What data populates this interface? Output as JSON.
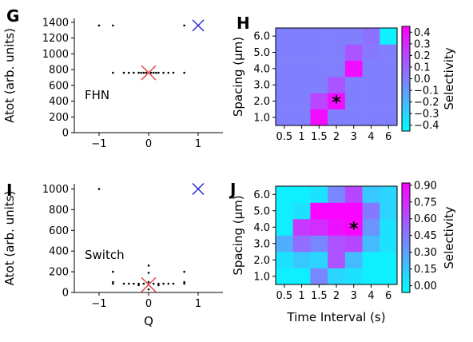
{
  "chart_data": [
    {
      "panel": "G",
      "type": "scatter",
      "xlabel": "",
      "ylabel": "Atot (arb. units)",
      "xlim": [
        -1.5,
        1.5
      ],
      "ylim": [
        0,
        1450
      ],
      "xticks": [
        -1,
        0,
        1
      ],
      "xtick_labels": [
        "−1",
        "0",
        "1"
      ],
      "yticks": [
        0,
        200,
        400,
        600,
        800,
        1000,
        1200,
        1400
      ],
      "annotation": "FHN",
      "series": [
        {
          "marker": "dot",
          "color": "#000000",
          "points": [
            [
              -1.0,
              1360
            ],
            [
              -0.72,
              1360
            ],
            [
              0.72,
              1360
            ],
            [
              -0.72,
              760
            ],
            [
              -0.5,
              760
            ],
            [
              -0.4,
              760
            ],
            [
              -0.3,
              760
            ],
            [
              -0.2,
              760
            ],
            [
              -0.15,
              760
            ],
            [
              -0.1,
              760
            ],
            [
              -0.05,
              760
            ],
            [
              0.0,
              760
            ],
            [
              0.05,
              760
            ],
            [
              0.1,
              760
            ],
            [
              0.15,
              760
            ],
            [
              0.2,
              760
            ],
            [
              0.3,
              760
            ],
            [
              0.4,
              760
            ],
            [
              0.5,
              760
            ],
            [
              0.72,
              760
            ]
          ]
        },
        {
          "marker": "x",
          "color": "#e05050",
          "points": [
            [
              0.0,
              760
            ]
          ]
        },
        {
          "marker": "x",
          "color": "#2b2bd6",
          "points": [
            [
              1.0,
              1360
            ]
          ]
        }
      ]
    },
    {
      "panel": "H",
      "type": "heatmap",
      "xlabel": "",
      "ylabel": "Spacing (μm)",
      "xcategories": [
        "0.5",
        "1",
        "1.5",
        "2",
        "3",
        "4",
        "6"
      ],
      "ycategories": [
        "1.0",
        "2.0",
        "3.0",
        "4.0",
        "5.0",
        "6.0"
      ],
      "values": [
        [
          0.0,
          0.0,
          0.4,
          0.0,
          0.0,
          0.0,
          0.0
        ],
        [
          0.0,
          0.0,
          0.2,
          0.4,
          0.0,
          0.0,
          0.0
        ],
        [
          0.0,
          0.0,
          0.0,
          0.15,
          0.0,
          0.0,
          0.0
        ],
        [
          0.0,
          0.0,
          0.0,
          0.0,
          0.4,
          0.0,
          0.0
        ],
        [
          0.0,
          0.0,
          0.0,
          0.0,
          0.15,
          0.02,
          0.0
        ],
        [
          0.0,
          0.0,
          0.0,
          0.0,
          0.0,
          0.05,
          -0.4
        ]
      ],
      "star": {
        "x": "2",
        "y": "2.0"
      },
      "colorbar": {
        "label": "Selectivity",
        "min": -0.45,
        "max": 0.45,
        "ticks": [
          "0.4",
          "0.3",
          "0.2",
          "0.1",
          "0.0",
          "−0.1",
          "−0.2",
          "−0.3",
          "−0.4"
        ],
        "tick_values": [
          0.4,
          0.3,
          0.2,
          0.1,
          0.0,
          -0.1,
          -0.2,
          -0.3,
          -0.4
        ]
      }
    },
    {
      "panel": "I",
      "type": "scatter",
      "xlabel": "Q",
      "ylabel": "Atot (arb. units)",
      "xlim": [
        -1.5,
        1.5
      ],
      "ylim": [
        0,
        1050
      ],
      "xticks": [
        -1,
        0,
        1
      ],
      "xtick_labels": [
        "−1",
        "0",
        "1"
      ],
      "yticks": [
        0,
        200,
        400,
        600,
        800,
        1000
      ],
      "annotation": "Switch",
      "series": [
        {
          "marker": "dot",
          "color": "#000000",
          "points": [
            [
              -1.0,
              1000
            ],
            [
              0.0,
              260
            ],
            [
              -0.72,
              200
            ],
            [
              0.0,
              190
            ],
            [
              0.72,
              200
            ],
            [
              -0.72,
              100
            ],
            [
              -0.72,
              85
            ],
            [
              -0.5,
              85
            ],
            [
              -0.4,
              85
            ],
            [
              -0.3,
              85
            ],
            [
              -0.2,
              85
            ],
            [
              -0.1,
              85
            ],
            [
              0.0,
              100
            ],
            [
              0.1,
              85
            ],
            [
              0.2,
              85
            ],
            [
              0.3,
              85
            ],
            [
              0.4,
              85
            ],
            [
              0.5,
              85
            ],
            [
              0.72,
              85
            ],
            [
              0.72,
              100
            ],
            [
              -0.2,
              70
            ],
            [
              0.2,
              70
            ],
            [
              0.0,
              30
            ]
          ]
        },
        {
          "marker": "x",
          "color": "#e05050",
          "points": [
            [
              0.0,
              75
            ]
          ]
        },
        {
          "marker": "x",
          "color": "#2b2bd6",
          "points": [
            [
              1.0,
              1000
            ]
          ]
        }
      ]
    },
    {
      "panel": "J",
      "type": "heatmap",
      "xlabel": "Time Interval (s)",
      "ylabel": "Spacing (μm)",
      "xcategories": [
        "0.5",
        "1",
        "1.5",
        "2",
        "3",
        "4",
        "6"
      ],
      "ycategories": [
        "1.0",
        "2.0",
        "3.0",
        "4.0",
        "5.0",
        "6.0"
      ],
      "values": [
        [
          0.0,
          0.0,
          0.4,
          0.1,
          0.05,
          0.0,
          0.0
        ],
        [
          0.05,
          0.15,
          0.1,
          0.6,
          0.2,
          0.0,
          0.0
        ],
        [
          0.25,
          0.5,
          0.4,
          0.6,
          0.65,
          0.2,
          0.05
        ],
        [
          0.0,
          0.7,
          0.75,
          0.85,
          0.9,
          0.35,
          0.05
        ],
        [
          0.0,
          0.05,
          0.9,
          0.9,
          0.9,
          0.45,
          0.1
        ],
        [
          0.0,
          0.0,
          0.05,
          0.4,
          0.65,
          0.15,
          0.1
        ]
      ],
      "star": {
        "x": "3",
        "y": "4.0"
      },
      "colorbar": {
        "label": "Selectivity",
        "min": -0.06,
        "max": 0.92,
        "ticks": [
          "0.90",
          "0.75",
          "0.60",
          "0.45",
          "0.30",
          "0.15",
          "0.00"
        ],
        "tick_values": [
          0.9,
          0.75,
          0.6,
          0.45,
          0.3,
          0.15,
          0.0
        ]
      }
    }
  ]
}
